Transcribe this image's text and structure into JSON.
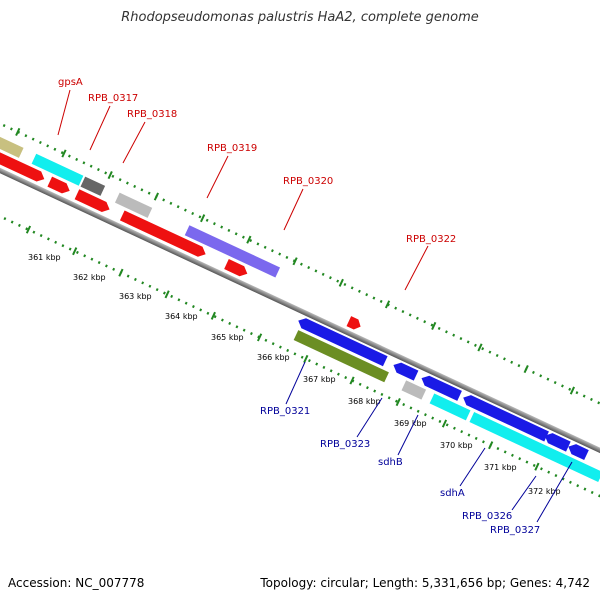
{
  "title": "Rhodopseudomonas palustris HaA2, complete genome",
  "footer": {
    "accession": "Accession: NC_007778",
    "summary": "Topology: circular; Length: 5,331,656 bp; Genes: 4,742"
  },
  "scale_labels": [
    "361 kbp",
    "362 kbp",
    "363 kbp",
    "364 kbp",
    "365 kbp",
    "366 kbp",
    "367 kbp",
    "368 kbp",
    "369 kbp",
    "370 kbp",
    "371 kbp",
    "372 kbp"
  ],
  "forward_labels": [
    "gpsA",
    "RPB_0317",
    "RPB_0318",
    "RPB_0319",
    "RPB_0320",
    "RPB_0322"
  ],
  "reverse_labels": [
    "RPB_0321",
    "RPB_0323",
    "sdhB",
    "sdhA",
    "RPB_0326",
    "RPB_0327"
  ],
  "colors": {
    "red": "#ee1111",
    "blue": "#1a1ae6",
    "cyan": "#11eeee",
    "olive": "#6b8e23",
    "slate": "#7b68ee",
    "gray": "#bbbbbb",
    "darkgray": "#666666",
    "khaki": "#c8c080",
    "tick": "#228822",
    "backbone": "#888888"
  }
}
